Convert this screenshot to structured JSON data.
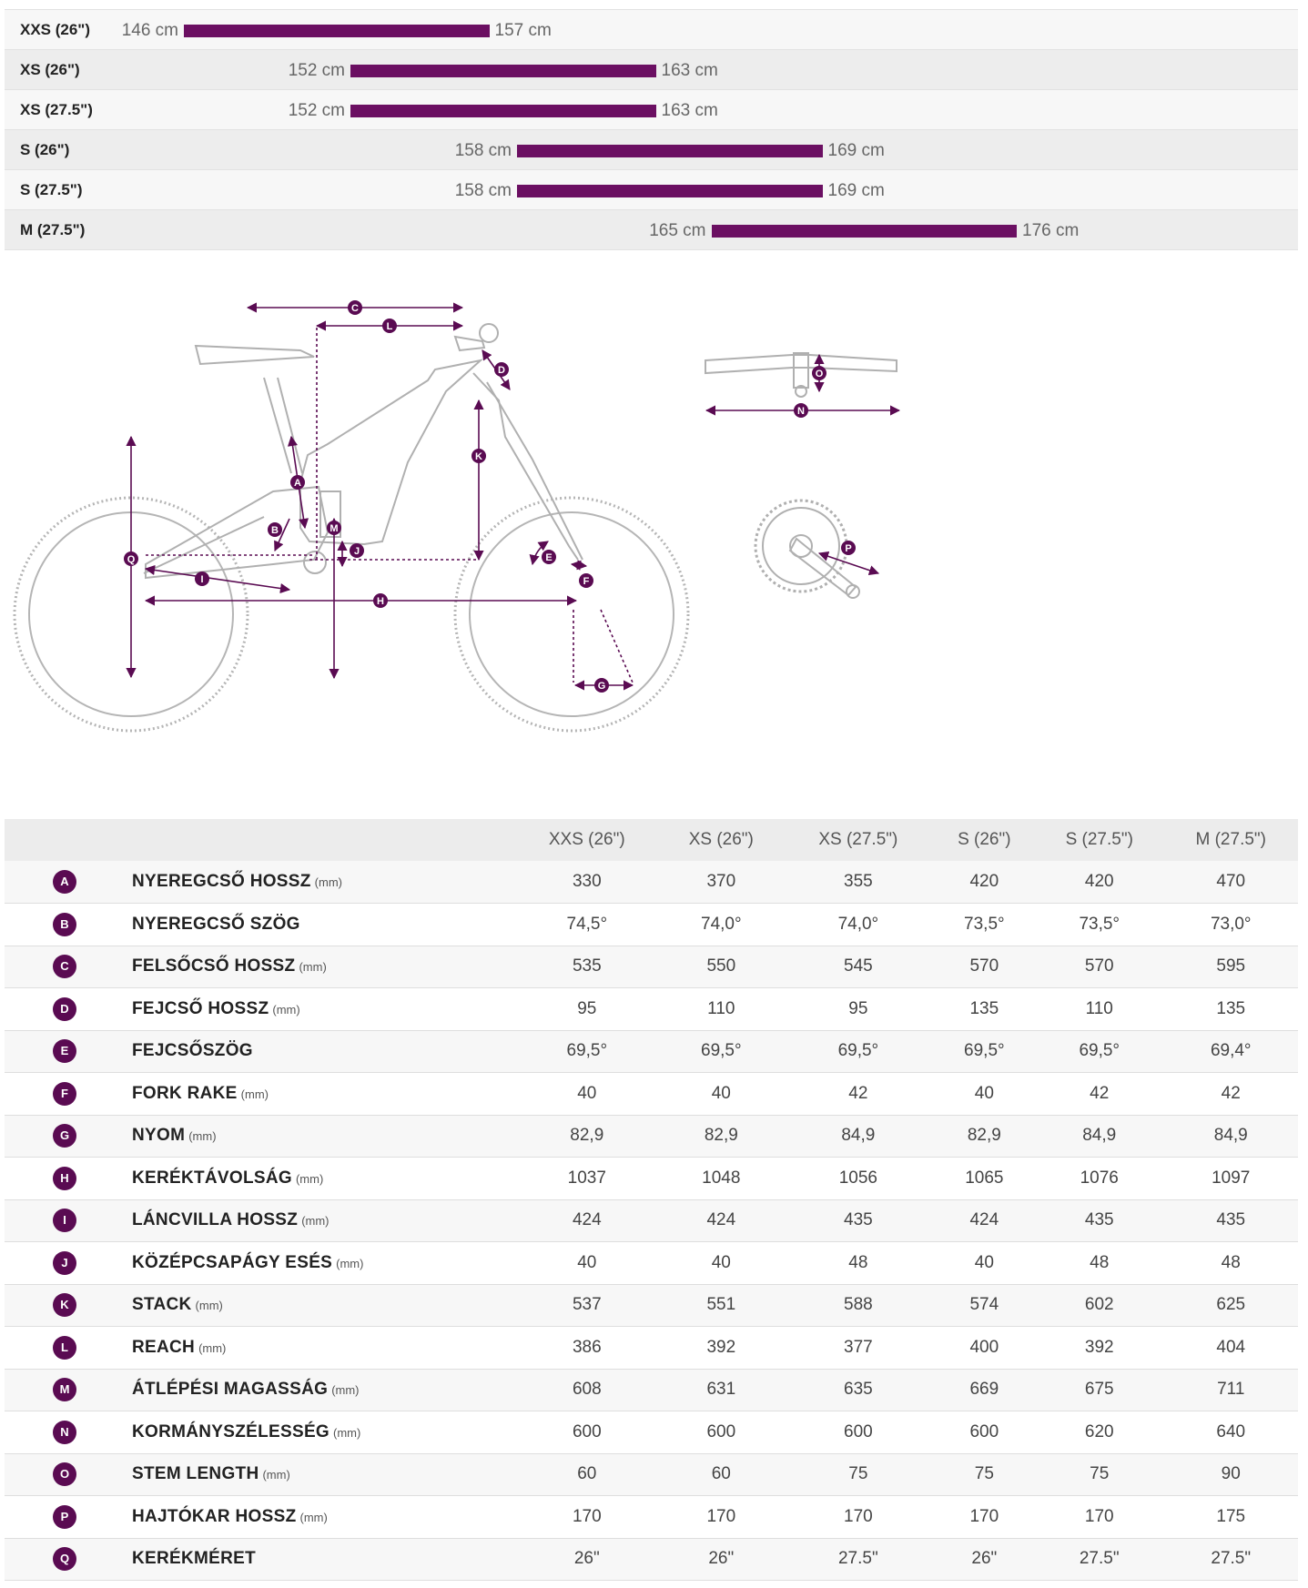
{
  "size_chart": {
    "rows": [
      {
        "label": "XXS (26\")",
        "min": "146 cm",
        "max": "157 cm",
        "min_cm": 146,
        "max_cm": 157
      },
      {
        "label": "XS (26\")",
        "min": "152 cm",
        "max": "163 cm",
        "min_cm": 152,
        "max_cm": 163
      },
      {
        "label": "XS (27.5\")",
        "min": "152 cm",
        "max": "163 cm",
        "min_cm": 152,
        "max_cm": 163
      },
      {
        "label": "S (26\")",
        "min": "158 cm",
        "max": "169 cm",
        "min_cm": 158,
        "max_cm": 169
      },
      {
        "label": "S (27.5\")",
        "min": "158 cm",
        "max": "169 cm",
        "min_cm": 158,
        "max_cm": 169
      },
      {
        "label": "M (27.5\")",
        "min": "165 cm",
        "max": "176 cm",
        "min_cm": 165,
        "max_cm": 176
      }
    ],
    "bar_color": "#6b0f62"
  },
  "diagram": {
    "markers": [
      "A",
      "B",
      "C",
      "D",
      "E",
      "F",
      "G",
      "H",
      "I",
      "J",
      "K",
      "L",
      "M",
      "N",
      "O",
      "P",
      "Q"
    ],
    "marker_color": "#5a0b52"
  },
  "geometry": {
    "headers": [
      "XXS (26\")",
      "XS (26\")",
      "XS (27.5\")",
      "S (26\")",
      "S (27.5\")",
      "M (27.5\")"
    ],
    "rows": [
      {
        "letter": "A",
        "name": "NYEREGCSŐ HOSSZ",
        "unit": "(mm)",
        "values": [
          "330",
          "370",
          "355",
          "420",
          "420",
          "470"
        ]
      },
      {
        "letter": "B",
        "name": "NYEREGCSŐ SZÖG",
        "unit": "",
        "values": [
          "74,5°",
          "74,0°",
          "74,0°",
          "73,5°",
          "73,5°",
          "73,0°"
        ]
      },
      {
        "letter": "C",
        "name": "FELSŐCSŐ HOSSZ",
        "unit": "(mm)",
        "values": [
          "535",
          "550",
          "545",
          "570",
          "570",
          "595"
        ]
      },
      {
        "letter": "D",
        "name": "FEJCSŐ HOSSZ",
        "unit": "(mm)",
        "values": [
          "95",
          "110",
          "95",
          "135",
          "110",
          "135"
        ]
      },
      {
        "letter": "E",
        "name": "FEJCSŐSZÖG",
        "unit": "",
        "values": [
          "69,5°",
          "69,5°",
          "69,5°",
          "69,5°",
          "69,5°",
          "69,4°"
        ]
      },
      {
        "letter": "F",
        "name": "FORK RAKE",
        "unit": "(mm)",
        "values": [
          "40",
          "40",
          "42",
          "40",
          "42",
          "42"
        ]
      },
      {
        "letter": "G",
        "name": "NYOM",
        "unit": "(mm)",
        "values": [
          "82,9",
          "82,9",
          "84,9",
          "82,9",
          "84,9",
          "84,9"
        ]
      },
      {
        "letter": "H",
        "name": "KERÉKTÁVOLSÁG",
        "unit": "(mm)",
        "values": [
          "1037",
          "1048",
          "1056",
          "1065",
          "1076",
          "1097"
        ]
      },
      {
        "letter": "I",
        "name": "LÁNCVILLA HOSSZ",
        "unit": "(mm)",
        "values": [
          "424",
          "424",
          "435",
          "424",
          "435",
          "435"
        ]
      },
      {
        "letter": "J",
        "name": "KÖZÉPCSAPÁGY ESÉS",
        "unit": "(mm)",
        "values": [
          "40",
          "40",
          "48",
          "40",
          "48",
          "48"
        ]
      },
      {
        "letter": "K",
        "name": "STACK",
        "unit": "(mm)",
        "values": [
          "537",
          "551",
          "588",
          "574",
          "602",
          "625"
        ]
      },
      {
        "letter": "L",
        "name": "REACH",
        "unit": "(mm)",
        "values": [
          "386",
          "392",
          "377",
          "400",
          "392",
          "404"
        ]
      },
      {
        "letter": "M",
        "name": "ÁTLÉPÉSI MAGASSÁG",
        "unit": "(mm)",
        "values": [
          "608",
          "631",
          "635",
          "669",
          "675",
          "711"
        ]
      },
      {
        "letter": "N",
        "name": "KORMÁNYSZÉLESSÉG",
        "unit": "(mm)",
        "values": [
          "600",
          "600",
          "600",
          "600",
          "620",
          "640"
        ]
      },
      {
        "letter": "O",
        "name": "STEM LENGTH",
        "unit": "(mm)",
        "values": [
          "60",
          "60",
          "75",
          "75",
          "75",
          "90"
        ]
      },
      {
        "letter": "P",
        "name": "HAJTÓKAR HOSSZ",
        "unit": "(mm)",
        "values": [
          "170",
          "170",
          "170",
          "170",
          "170",
          "175"
        ]
      },
      {
        "letter": "Q",
        "name": "KERÉKMÉRET",
        "unit": "",
        "values": [
          "26\"",
          "26\"",
          "27.5\"",
          "26\"",
          "27.5\"",
          "27.5\""
        ]
      }
    ]
  }
}
